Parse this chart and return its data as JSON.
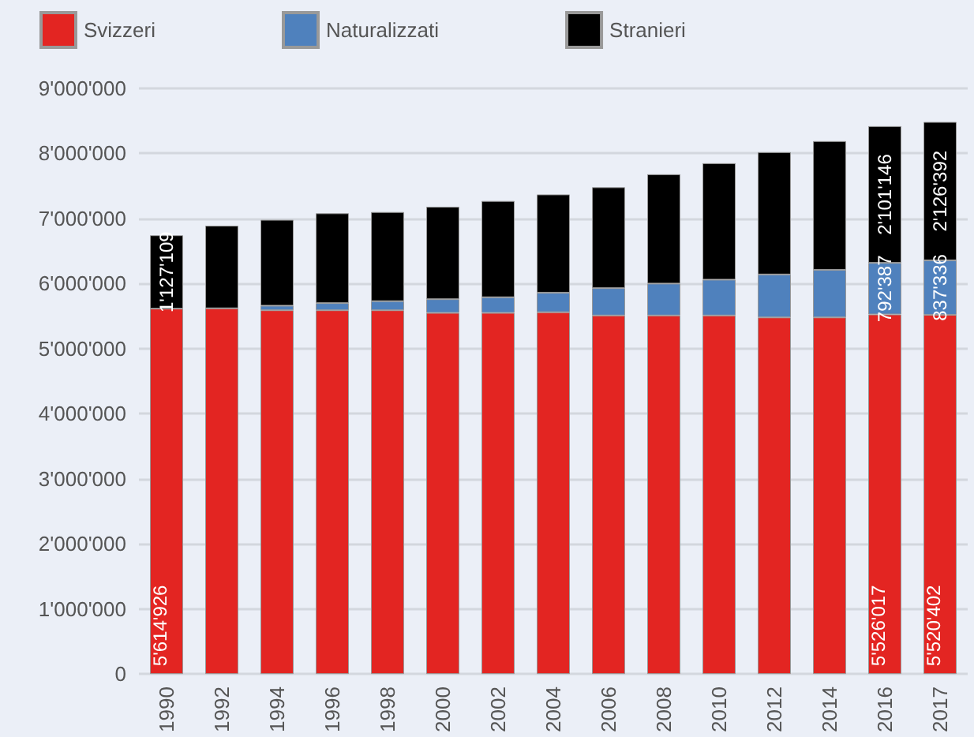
{
  "chart_data": {
    "type": "bar",
    "stacked": true,
    "categories": [
      "1990",
      "1992",
      "1994",
      "1996",
      "1998",
      "2000",
      "2002",
      "2004",
      "2006",
      "2008",
      "2010",
      "2012",
      "2014",
      "2016",
      "2017"
    ],
    "series": [
      {
        "name": "Svizzeri",
        "color": "#e32522",
        "values": [
          5614926,
          5620000,
          5590000,
          5590000,
          5590000,
          5550000,
          5550000,
          5560000,
          5510000,
          5510000,
          5510000,
          5480000,
          5480000,
          5526017,
          5520402
        ],
        "value_labels": [
          "5'614'926",
          null,
          null,
          null,
          null,
          null,
          null,
          null,
          null,
          null,
          null,
          null,
          null,
          "5'526'017",
          "5'520'402"
        ]
      },
      {
        "name": "Naturalizzati",
        "color": "#4f81bd",
        "values": [
          null,
          null,
          70000,
          110000,
          140000,
          210000,
          240000,
          300000,
          420000,
          490000,
          550000,
          660000,
          730000,
          792387,
          837336
        ],
        "value_labels": [
          null,
          null,
          null,
          null,
          null,
          null,
          null,
          null,
          null,
          null,
          null,
          null,
          null,
          "792'387",
          "837'336"
        ]
      },
      {
        "name": "Stranieri",
        "color": "#000000",
        "values": [
          1127109,
          1270000,
          1320000,
          1380000,
          1370000,
          1420000,
          1480000,
          1510000,
          1550000,
          1680000,
          1790000,
          1880000,
          1980000,
          2101146,
          2126392
        ],
        "value_labels": [
          "1'127'109",
          null,
          null,
          null,
          null,
          null,
          null,
          null,
          null,
          null,
          null,
          null,
          null,
          "2'101'146",
          "2'126'392"
        ]
      }
    ],
    "ylim": [
      0,
      9000000
    ],
    "yticks": [
      0,
      {
        "value": 1000000,
        "label": "1'000'000"
      },
      {
        "value": 2000000,
        "label": "2'000'000"
      },
      {
        "value": 3000000,
        "label": "3'000'000"
      },
      {
        "value": 4000000,
        "label": "4'000'000"
      },
      {
        "value": 5000000,
        "label": "5'000'000"
      },
      {
        "value": 6000000,
        "label": "6'000'000"
      },
      {
        "value": 7000000,
        "label": "7'000'000"
      },
      {
        "value": 8000000,
        "label": "8'000'000"
      },
      {
        "value": 9000000,
        "label": "9'000'000"
      }
    ],
    "grid": "y",
    "legend": "top left"
  }
}
